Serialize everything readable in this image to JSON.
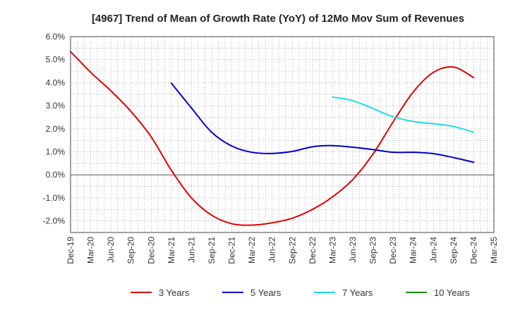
{
  "chart_data": {
    "type": "line",
    "title": "[4967]  Trend of Mean of Growth Rate (YoY) of 12Mo Mov Sum of Revenues",
    "xlabel": "",
    "ylabel": "",
    "ylim": [
      -2.5,
      6.0
    ],
    "y_ticks": [
      6.0,
      5.0,
      4.0,
      3.0,
      2.0,
      1.0,
      0.0,
      -1.0,
      -2.0
    ],
    "y_tick_labels": [
      "6.0%",
      "5.0%",
      "4.0%",
      "3.0%",
      "2.0%",
      "1.0%",
      "0.0%",
      "-1.0%",
      "-2.0%"
    ],
    "x_tick_labels": [
      "Dec-19",
      "Mar-20",
      "Jun-20",
      "Sep-20",
      "Dec-20",
      "Mar-21",
      "Jun-21",
      "Sep-21",
      "Dec-21",
      "Mar-22",
      "Jun-22",
      "Sep-22",
      "Dec-22",
      "Mar-23",
      "Jun-23",
      "Sep-23",
      "Dec-23",
      "Mar-24",
      "Jun-24",
      "Sep-24",
      "Dec-24",
      "Mar-25"
    ],
    "x_months_total": 63,
    "grid": true,
    "legend_position": "bottom",
    "series": [
      {
        "name": "3 Years",
        "color": "#e00000",
        "points": [
          [
            0,
            5.35
          ],
          [
            3,
            4.45
          ],
          [
            6,
            3.65
          ],
          [
            9,
            2.75
          ],
          [
            12,
            1.65
          ],
          [
            15,
            0.2
          ],
          [
            18,
            -1.0
          ],
          [
            21,
            -1.75
          ],
          [
            24,
            -2.12
          ],
          [
            27,
            -2.18
          ],
          [
            30,
            -2.08
          ],
          [
            33,
            -1.88
          ],
          [
            36,
            -1.5
          ],
          [
            39,
            -0.95
          ],
          [
            42,
            -0.2
          ],
          [
            45,
            0.9
          ],
          [
            48,
            2.3
          ],
          [
            51,
            3.6
          ],
          [
            54,
            4.45
          ],
          [
            57,
            4.68
          ],
          [
            60,
            4.22
          ]
        ]
      },
      {
        "name": "5 Years",
        "color": "#0000cc",
        "points": [
          [
            15,
            3.98
          ],
          [
            18,
            2.9
          ],
          [
            21,
            1.85
          ],
          [
            24,
            1.25
          ],
          [
            27,
            0.98
          ],
          [
            30,
            0.93
          ],
          [
            33,
            1.02
          ],
          [
            36,
            1.22
          ],
          [
            39,
            1.27
          ],
          [
            42,
            1.2
          ],
          [
            45,
            1.1
          ],
          [
            48,
            0.98
          ],
          [
            51,
            0.98
          ],
          [
            54,
            0.92
          ],
          [
            57,
            0.75
          ],
          [
            60,
            0.55
          ]
        ]
      },
      {
        "name": "7 Years",
        "color": "#22dddd",
        "points": [
          [
            39,
            3.38
          ],
          [
            42,
            3.22
          ],
          [
            45,
            2.88
          ],
          [
            48,
            2.52
          ],
          [
            51,
            2.32
          ],
          [
            54,
            2.22
          ],
          [
            57,
            2.1
          ],
          [
            60,
            1.85
          ]
        ]
      },
      {
        "name": "10 Years",
        "color": "#1a8a1a",
        "points": []
      }
    ]
  }
}
